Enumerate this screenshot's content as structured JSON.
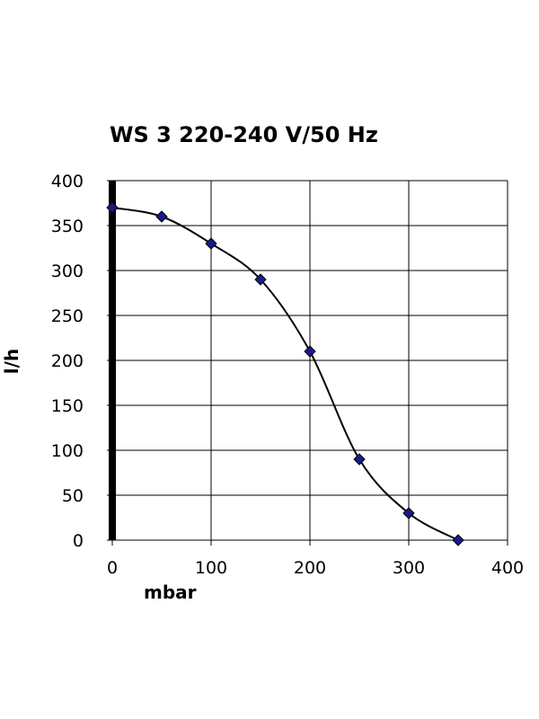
{
  "chart_data": {
    "type": "line",
    "title": "WS 3 220-240 V/50 Hz",
    "xlabel": "mbar",
    "ylabel": "l/h",
    "xlim": [
      0,
      400
    ],
    "ylim": [
      0,
      400
    ],
    "x_ticks": [
      "0",
      "100",
      "200",
      "300",
      "400"
    ],
    "y_ticks": [
      "0",
      "50",
      "100",
      "150",
      "200",
      "250",
      "300",
      "350",
      "400"
    ],
    "grid": true,
    "series": [
      {
        "color": "#1a1a8c",
        "x": [
          0,
          50,
          100,
          150,
          200,
          250,
          300,
          350
        ],
        "y": [
          370,
          360,
          330,
          290,
          210,
          90,
          30,
          0
        ]
      }
    ]
  }
}
